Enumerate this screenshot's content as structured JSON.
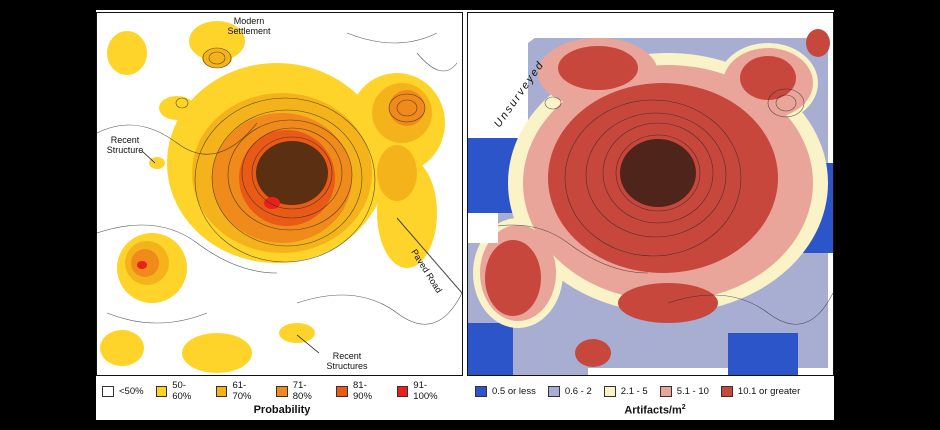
{
  "left_map": {
    "labels": {
      "modern_settlement": "Modern Settlement",
      "recent_structure": "Recent Structure",
      "paved_road": "Paved Road",
      "recent_structures": "Recent Structures"
    },
    "legend_title": "Probability",
    "legend": [
      {
        "label": "<50%",
        "color": "#ffffff"
      },
      {
        "label": "50-60%",
        "color": "#ffd21f"
      },
      {
        "label": "61-70%",
        "color": "#f5b31b"
      },
      {
        "label": "71-80%",
        "color": "#f08a1a"
      },
      {
        "label": "81-90%",
        "color": "#ea5a17"
      },
      {
        "label": "91-100%",
        "color": "#e8211b"
      }
    ]
  },
  "right_map": {
    "labels": {
      "unsurveyed": "Unsurveyed"
    },
    "legend_title": "Artifacts/m",
    "legend_title_sup": "2",
    "legend": [
      {
        "label": "0.5 or less",
        "color": "#2c55c9"
      },
      {
        "label": "0.6 - 2",
        "color": "#a8aed2"
      },
      {
        "label": "2.1 - 5",
        "color": "#faf3c8"
      },
      {
        "label": "5.1 - 10",
        "color": "#eaa59a"
      },
      {
        "label": "10.1 or greater",
        "color": "#c7473d"
      }
    ]
  }
}
